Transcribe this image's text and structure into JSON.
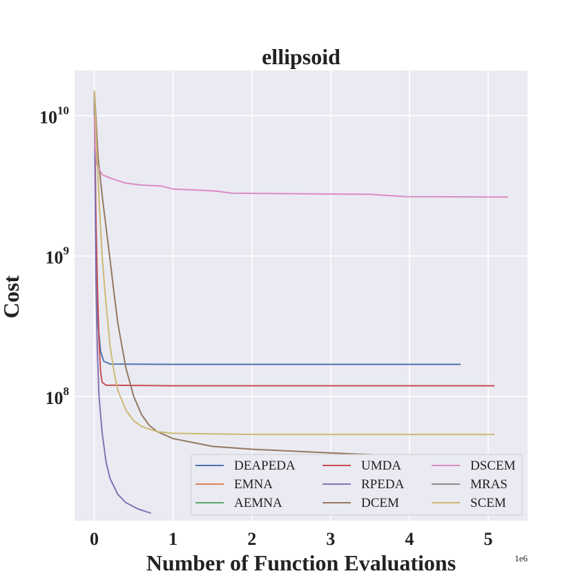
{
  "chart_data": {
    "type": "line",
    "title": "ellipsoid",
    "xlabel": "Number of Function Evaluations",
    "ylabel": "Cost",
    "x_offset_label": "1e6",
    "xlim": [
      -0.25,
      5.5
    ],
    "ylim": [
      13000000,
      21000000000
    ],
    "yscale": "log",
    "x_ticks": [
      0,
      1,
      2,
      3,
      4,
      5
    ],
    "x_tick_labels": [
      "0",
      "1",
      "2",
      "3",
      "4",
      "5"
    ],
    "y_ticks": [
      {
        "value": 100000000,
        "base": "10",
        "exp": "8"
      },
      {
        "value": 1000000000,
        "base": "10",
        "exp": "9"
      },
      {
        "value": 10000000000,
        "base": "10",
        "exp": "10"
      }
    ],
    "grid": true,
    "legend_position": "lower-right",
    "legend_columns": 3,
    "series": [
      {
        "name": "DEAPEDA",
        "color": "#4c72b0",
        "points": [
          [
            0,
            15000000000
          ],
          [
            0.01,
            5000000000
          ],
          [
            0.02,
            1600000000
          ],
          [
            0.03,
            700000000
          ],
          [
            0.05,
            320000000
          ],
          [
            0.08,
            210000000
          ],
          [
            0.12,
            178000000
          ],
          [
            0.2,
            170000000
          ],
          [
            1,
            169000000
          ],
          [
            3,
            169000000
          ],
          [
            4.65,
            169000000
          ]
        ]
      },
      {
        "name": "EMNA",
        "color": "#dd8452",
        "points": [
          [
            0,
            15000000000
          ],
          [
            0.02,
            10000000000
          ],
          [
            0.04,
            5000000000
          ],
          [
            0.05,
            4700000000
          ]
        ]
      },
      {
        "name": "AEMNA",
        "color": "#55a868",
        "points": [
          [
            0,
            15000000000
          ],
          [
            0.005,
            12000000000
          ]
        ]
      },
      {
        "name": "UMDA",
        "color": "#c44e52",
        "points": [
          [
            0,
            15000000000
          ],
          [
            0.02,
            2000000000
          ],
          [
            0.04,
            600000000
          ],
          [
            0.06,
            250000000
          ],
          [
            0.08,
            150000000
          ],
          [
            0.1,
            126000000
          ],
          [
            0.15,
            120000000
          ],
          [
            1,
            119000000
          ],
          [
            3,
            119000000
          ],
          [
            5.08,
            119000000
          ]
        ]
      },
      {
        "name": "RPEDA",
        "color": "#8172b3",
        "points": [
          [
            0,
            15000000000
          ],
          [
            0.01,
            3000000000
          ],
          [
            0.02,
            700000000
          ],
          [
            0.04,
            200000000
          ],
          [
            0.06,
            100000000
          ],
          [
            0.1,
            55000000
          ],
          [
            0.15,
            34000000
          ],
          [
            0.2,
            26000000
          ],
          [
            0.3,
            20000000
          ],
          [
            0.4,
            17500000
          ],
          [
            0.55,
            15800000
          ],
          [
            0.72,
            14700000
          ]
        ]
      },
      {
        "name": "DCEM",
        "color": "#937860",
        "points": [
          [
            0,
            15000000000
          ],
          [
            0.05,
            5000000000
          ],
          [
            0.1,
            2700000000
          ],
          [
            0.15,
            1600000000
          ],
          [
            0.2,
            950000000
          ],
          [
            0.25,
            550000000
          ],
          [
            0.3,
            330000000
          ],
          [
            0.4,
            160000000
          ],
          [
            0.5,
            100000000
          ],
          [
            0.6,
            74000000
          ],
          [
            0.7,
            62000000
          ],
          [
            0.8,
            56000000
          ],
          [
            1,
            50000000
          ],
          [
            1.5,
            44000000
          ],
          [
            2,
            42000000
          ],
          [
            3,
            39500000
          ],
          [
            4,
            37500000
          ],
          [
            4.9,
            36000000
          ]
        ]
      },
      {
        "name": "DSCEM",
        "color": "#da8bc3",
        "points": [
          [
            0,
            15000000000
          ],
          [
            0.01,
            6000000000
          ],
          [
            0.03,
            4500000000
          ],
          [
            0.06,
            4200000000
          ],
          [
            0.1,
            3800000000
          ],
          [
            0.2,
            3600000000
          ],
          [
            0.3,
            3450000000
          ],
          [
            0.4,
            3300000000
          ],
          [
            0.6,
            3200000000
          ],
          [
            0.85,
            3150000000
          ],
          [
            1,
            3000000000
          ],
          [
            1.3,
            2950000000
          ],
          [
            1.55,
            2900000000
          ],
          [
            1.75,
            2800000000
          ],
          [
            2.5,
            2780000000
          ],
          [
            3.5,
            2750000000
          ],
          [
            3.95,
            2650000000
          ],
          [
            4.5,
            2640000000
          ],
          [
            5.25,
            2630000000
          ]
        ]
      },
      {
        "name": "MRAS",
        "color": "#8c8c8c",
        "points": [
          [
            0,
            15000000000
          ],
          [
            0.005,
            10000000000
          ]
        ]
      },
      {
        "name": "SCEM",
        "color": "#ccb974",
        "points": [
          [
            0,
            15000000000
          ],
          [
            0.03,
            6000000000
          ],
          [
            0.06,
            2500000000
          ],
          [
            0.1,
            1000000000
          ],
          [
            0.15,
            450000000
          ],
          [
            0.2,
            230000000
          ],
          [
            0.25,
            150000000
          ],
          [
            0.3,
            110000000
          ],
          [
            0.4,
            80000000
          ],
          [
            0.5,
            67000000
          ],
          [
            0.6,
            61000000
          ],
          [
            0.8,
            56000000
          ],
          [
            1,
            54500000
          ],
          [
            2,
            53500000
          ],
          [
            5.08,
            53500000
          ]
        ]
      }
    ]
  }
}
